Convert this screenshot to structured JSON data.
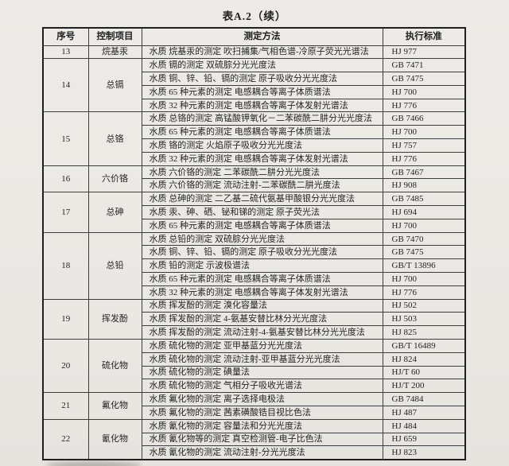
{
  "title": "表A.2（续）",
  "columns": [
    "序号",
    "控制项目",
    "测定方法",
    "执行标准"
  ],
  "groups": [
    {
      "no": "13",
      "item": "烷基汞",
      "rows": [
        [
          "水质 烷基汞的测定 吹扫捕集/气相色谱-冷原子荧光光谱法",
          "HJ 977"
        ]
      ]
    },
    {
      "no": "14",
      "item": "总镉",
      "rows": [
        [
          "水质 镉的测定 双硫腙分光光度法",
          "GB 7471"
        ],
        [
          "水质 铜、锌、铅、镉的测定 原子吸收分光光度法",
          "GB 7475"
        ],
        [
          "水质 65 种元素的测定 电感耦合等离子体质谱法",
          "HJ 700"
        ],
        [
          "水质 32 种元素的测定 电感耦合等离子体发射光谱法",
          "HJ 776"
        ]
      ]
    },
    {
      "no": "15",
      "item": "总铬",
      "rows": [
        [
          "水质 总铬的测定 高锰酸钾氧化－二苯碳酰二肼分光光度法",
          "GB 7466"
        ],
        [
          "水质 65 种元素的测定 电感耦合等离子体质谱法",
          "HJ 700"
        ],
        [
          "水质 铬的测定 火焰原子吸收分光光度法",
          "HJ 757"
        ],
        [
          "水质 32 种元素的测定 电感耦合等离子体发射光谱法",
          "HJ 776"
        ]
      ]
    },
    {
      "no": "16",
      "item": "六价铬",
      "rows": [
        [
          "水质 六价铬的测定 二苯碳酰二肼分光光度法",
          "GB 7467"
        ],
        [
          "水质 六价铬的测定 流动注射-二苯碳酰二肼光度法",
          "HJ 908"
        ]
      ]
    },
    {
      "no": "17",
      "item": "总砷",
      "rows": [
        [
          "水质 总砷的测定 二乙基二硫代氨基甲酸银分光光度法",
          "GB 7485"
        ],
        [
          "水质 汞、砷、硒、铋和锑的测定 原子荧光法",
          "HJ 694"
        ],
        [
          "水质 65 种元素的测定 电感耦合等离子体质谱法",
          "HJ 700"
        ]
      ]
    },
    {
      "no": "18",
      "item": "总铅",
      "rows": [
        [
          "水质 总铅的测定 双硫腙分光光度法",
          "GB 7470"
        ],
        [
          "水质 铜、锌、铅、镉的测定 原子吸收分光光度法",
          "GB 7475"
        ],
        [
          "水质 铅的测定 示波极谱法",
          "GB/T 13896"
        ],
        [
          "水质 65 种元素的测定 电感耦合等离子体质谱法",
          "HJ 700"
        ],
        [
          "水质 32 种元素的测定 电感耦合等离子体发射光谱法",
          "HJ 776"
        ]
      ]
    },
    {
      "no": "19",
      "item": "挥发酚",
      "rows": [
        [
          "水质 挥发酚的测定 溴化容量法",
          "HJ 502"
        ],
        [
          "水质 挥发酚的测定 4-氨基安替比林分光光度法",
          "HJ 503"
        ],
        [
          "水质 挥发酚的测定 流动注射-4-氨基安替比林分光光度法",
          "HJ 825"
        ]
      ]
    },
    {
      "no": "20",
      "item": "硫化物",
      "rows": [
        [
          "水质 硫化物的测定 亚甲基蓝分光光度法",
          "GB/T 16489"
        ],
        [
          "水质 硫化物的测定 流动注射-亚甲基蓝分光光度法",
          "HJ 824"
        ],
        [
          "水质 硫化物的测定 碘量法",
          "HJ/T 60"
        ],
        [
          "水质 硫化物的测定 气相分子吸收光谱法",
          "HJ/T 200"
        ]
      ]
    },
    {
      "no": "21",
      "item": "氟化物",
      "rows": [
        [
          "水质 氟化物的测定 离子选择电极法",
          "GB 7484"
        ],
        [
          "水质 氟化物的测定 茜素磺酸锆目视比色法",
          "HJ 487"
        ]
      ]
    },
    {
      "no": "22",
      "item": "氰化物",
      "rows": [
        [
          "水质 氰化物的测定 容量法和分光光度法",
          "HJ 484"
        ],
        [
          "水质 氰化物等的测定 真空检测管-电子比色法",
          "HJ 659"
        ],
        [
          "水质 氰化物的测定 流动注射-分光光度法",
          "HJ 823"
        ]
      ]
    }
  ]
}
